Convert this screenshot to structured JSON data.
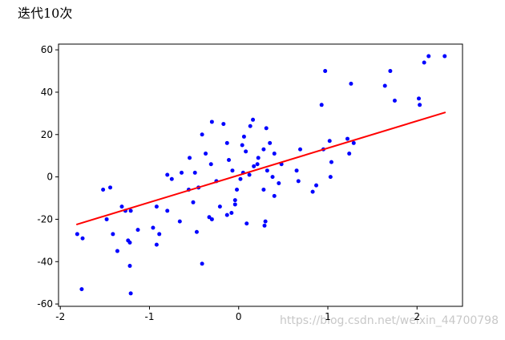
{
  "chart_data": {
    "type": "scatter",
    "title": "迭代10次",
    "watermark": "https://blog.csdn.net/weixin_44700798",
    "color": "blue",
    "x": [
      -1.81,
      -1.75,
      -1.76,
      -1.52,
      -1.44,
      -1.48,
      -1.41,
      -1.36,
      -1.31,
      -1.27,
      -1.21,
      -1.24,
      -1.22,
      -1.22,
      -1.21,
      -1.13,
      -0.96,
      -0.92,
      -0.92,
      -0.89,
      -0.8,
      -0.8,
      -0.75,
      -0.66,
      -0.64,
      -0.56,
      -0.55,
      -0.51,
      -0.49,
      -0.47,
      -0.45,
      -0.41,
      -0.41,
      -0.37,
      -0.33,
      -0.3,
      -0.3,
      -0.31,
      -0.25,
      -0.21,
      -0.17,
      -0.13,
      -0.13,
      -0.11,
      -0.08,
      -0.07,
      -0.04,
      -0.04,
      -0.02,
      0.02,
      0.04,
      0.05,
      0.06,
      0.08,
      0.09,
      0.12,
      0.13,
      0.16,
      0.17,
      0.21,
      0.22,
      0.28,
      0.28,
      0.29,
      0.3,
      0.31,
      0.32,
      0.35,
      0.38,
      0.4,
      0.4,
      0.45,
      0.48,
      0.65,
      0.67,
      0.69,
      0.83,
      0.87,
      0.93,
      0.95,
      0.97,
      1.02,
      1.04,
      1.03,
      1.22,
      1.24,
      1.26,
      1.29,
      1.64,
      1.7,
      1.75,
      2.02,
      2.03,
      2.08,
      2.13,
      2.31
    ],
    "y": [
      -27,
      -29,
      -53,
      -6,
      -5,
      -20,
      -27,
      -35,
      -14,
      -16,
      -16,
      -30,
      -31,
      -42,
      -55,
      -25,
      -24,
      -14,
      -32,
      -27,
      -16,
      1,
      -1,
      -21,
      2,
      -6,
      9,
      -12,
      2,
      -26,
      -5,
      -41,
      20,
      11,
      -19,
      -20,
      26,
      6,
      -2,
      -14,
      25,
      16,
      -18,
      8,
      -17,
      3,
      -11,
      -13,
      -6,
      -1,
      15,
      2,
      19,
      12,
      -22,
      1,
      24,
      27,
      5,
      6,
      9,
      -6,
      13,
      -23,
      -21,
      23,
      3,
      16,
      0,
      11,
      -9,
      -3,
      6,
      3,
      -2,
      13,
      -7,
      -4,
      34,
      13,
      50,
      17,
      7,
      0,
      18,
      11,
      44,
      16,
      43,
      50,
      36,
      37,
      34,
      54,
      57,
      57
    ],
    "line": {
      "x": [
        -1.82,
        2.32
      ],
      "y": [
        -22.5,
        30.5
      ],
      "color": "red"
    },
    "xlim": [
      -2.02,
      2.51
    ],
    "ylim": [
      -61.1,
      62.7
    ],
    "xticks": [
      -2,
      -1,
      0,
      1,
      2
    ],
    "yticks": [
      -60,
      -40,
      -20,
      0,
      20,
      40,
      60
    ]
  }
}
